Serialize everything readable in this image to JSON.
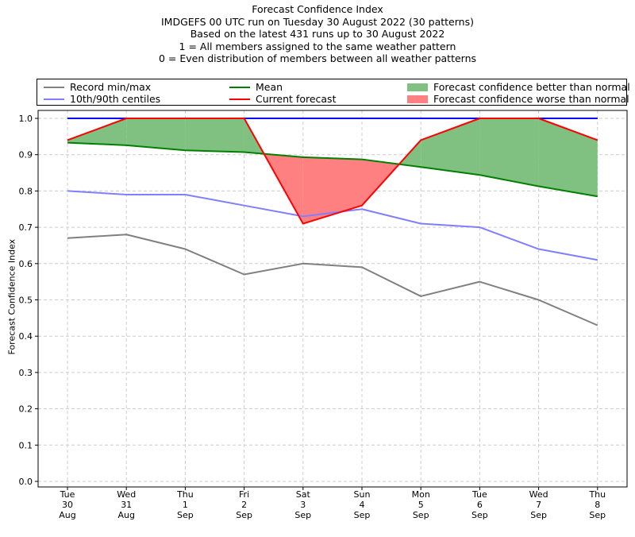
{
  "header": {
    "lines": [
      "Forecast Confidence Index",
      "IMDGEFS 00 UTC run on Tuesday 30 August 2022 (30 patterns)",
      "Based on the latest 431 runs up to 30 August 2022",
      "1 = All members assigned to the same weather pattern",
      "0 = Even distribution of members between all weather patterns"
    ]
  },
  "legend": {
    "items": [
      {
        "label": "Record min/max",
        "kind": "line",
        "color": "#808080"
      },
      {
        "label": "10th/90th centiles",
        "kind": "line",
        "color": "#7f7fff"
      },
      {
        "label": "Mean",
        "kind": "line",
        "color": "#008000"
      },
      {
        "label": "Current forecast",
        "kind": "line",
        "color": "#ff0000"
      },
      {
        "label": "Forecast confidence better than normal",
        "kind": "patch",
        "color": "#80c080"
      },
      {
        "label": "Forecast confidence worse than normal",
        "kind": "patch",
        "color": "#ff8080"
      }
    ]
  },
  "chart_data": {
    "type": "line",
    "title": "Forecast Confidence Index",
    "ylabel": "Forecast Confidence Index",
    "xlabel": "",
    "ylim": [
      0,
      1
    ],
    "yticks": [
      "0.0",
      "0.1",
      "0.2",
      "0.3",
      "0.4",
      "0.5",
      "0.6",
      "0.7",
      "0.8",
      "0.9",
      "1.0"
    ],
    "grid": true,
    "legend_position": "top",
    "categories": [
      [
        "Tue",
        "30",
        "Aug"
      ],
      [
        "Wed",
        "31",
        "Aug"
      ],
      [
        "Thu",
        "1",
        "Sep"
      ],
      [
        "Fri",
        "2",
        "Sep"
      ],
      [
        "Sat",
        "3",
        "Sep"
      ],
      [
        "Sun",
        "4",
        "Sep"
      ],
      [
        "Mon",
        "5",
        "Sep"
      ],
      [
        "Tue",
        "6",
        "Sep"
      ],
      [
        "Wed",
        "7",
        "Sep"
      ],
      [
        "Thu",
        "8",
        "Sep"
      ]
    ],
    "series": [
      {
        "name": "Record max",
        "color": "#808080",
        "values": [
          1,
          1,
          1,
          1,
          1,
          1,
          1,
          1,
          1,
          1
        ]
      },
      {
        "name": "Record min",
        "color": "#808080",
        "values": [
          0.67,
          0.68,
          0.64,
          0.57,
          0.6,
          0.59,
          0.51,
          0.55,
          0.5,
          0.43
        ]
      },
      {
        "name": "90th centile",
        "color": "#0000ff",
        "values": [
          1,
          1,
          1,
          1,
          1,
          1,
          1,
          1,
          1,
          1
        ]
      },
      {
        "name": "10th centile",
        "color": "#7f7fff",
        "values": [
          0.8,
          0.79,
          0.79,
          0.76,
          0.73,
          0.75,
          0.71,
          0.7,
          0.64,
          0.61
        ]
      },
      {
        "name": "Mean",
        "color": "#008000",
        "values": [
          0.933,
          0.926,
          0.912,
          0.907,
          0.893,
          0.887,
          0.866,
          0.844,
          0.813,
          0.785
        ]
      },
      {
        "name": "Current forecast",
        "color": "#ff0000",
        "values": [
          0.94,
          1.0,
          1.0,
          1.0,
          0.71,
          0.76,
          0.94,
          1.0,
          1.0,
          0.94
        ]
      }
    ],
    "fill_better_color": "#80c080",
    "fill_worse_color": "#ff8080"
  }
}
